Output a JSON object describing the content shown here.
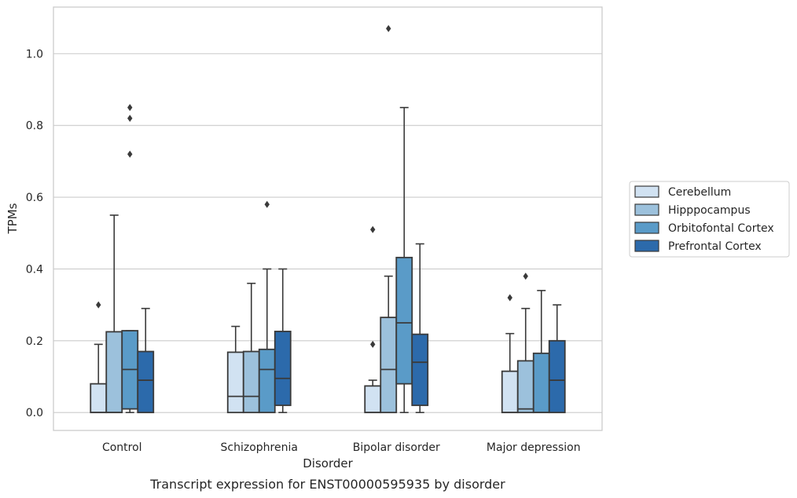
{
  "caption": "Transcript expression for ENST00000595935 by disorder",
  "chart_data": {
    "type": "boxplot",
    "title": "",
    "xlabel": "Disorder",
    "ylabel": "TPMs",
    "ylim": [
      -0.05,
      1.13
    ],
    "yticks": [
      "0.0",
      "0.2",
      "0.4",
      "0.6",
      "0.8",
      "1.0"
    ],
    "grid": "horizontal",
    "legend_position": "right",
    "categories": [
      "Control",
      "Schizophrenia",
      "Bipolar disorder",
      "Major depression"
    ],
    "series": [
      {
        "name": "Cerebellum",
        "color": "#d1e2f2",
        "boxes": [
          {
            "whisker_low": 0,
            "q1": 0,
            "median": 0,
            "q3": 0.08,
            "whisker_high": 0.19,
            "outliers": [
              0.3
            ]
          },
          {
            "whisker_low": 0,
            "q1": 0,
            "median": 0.045,
            "q3": 0.168,
            "whisker_high": 0.24,
            "outliers": []
          },
          {
            "whisker_low": 0,
            "q1": 0,
            "median": 0,
            "q3": 0.074,
            "whisker_high": 0.09,
            "outliers": [
              0.19,
              0.51
            ]
          },
          {
            "whisker_low": 0,
            "q1": 0,
            "median": 0,
            "q3": 0.115,
            "whisker_high": 0.22,
            "outliers": [
              0.32
            ]
          }
        ]
      },
      {
        "name": "Hipppocampus",
        "color": "#9cc1dc",
        "boxes": [
          {
            "whisker_low": 0,
            "q1": 0,
            "median": 0,
            "q3": 0.225,
            "whisker_high": 0.55,
            "outliers": []
          },
          {
            "whisker_low": 0,
            "q1": 0,
            "median": 0.045,
            "q3": 0.17,
            "whisker_high": 0.36,
            "outliers": []
          },
          {
            "whisker_low": 0,
            "q1": 0,
            "median": 0.12,
            "q3": 0.265,
            "whisker_high": 0.38,
            "outliers": [
              1.07
            ]
          },
          {
            "whisker_low": 0,
            "q1": 0,
            "median": 0.01,
            "q3": 0.144,
            "whisker_high": 0.29,
            "outliers": [
              0.38
            ]
          }
        ]
      },
      {
        "name": "Orbitofontal Cortex",
        "color": "#5a9bc8",
        "boxes": [
          {
            "whisker_low": 0,
            "q1": 0.01,
            "median": 0.12,
            "q3": 0.228,
            "whisker_high": 0.228,
            "outliers": [
              0.72,
              0.82,
              0.85
            ]
          },
          {
            "whisker_low": 0,
            "q1": 0,
            "median": 0.12,
            "q3": 0.176,
            "whisker_high": 0.4,
            "outliers": [
              0.58
            ]
          },
          {
            "whisker_low": 0,
            "q1": 0.08,
            "median": 0.25,
            "q3": 0.432,
            "whisker_high": 0.85,
            "outliers": []
          },
          {
            "whisker_low": 0,
            "q1": 0,
            "median": 0,
            "q3": 0.165,
            "whisker_high": 0.34,
            "outliers": []
          }
        ]
      },
      {
        "name": "Prefrontal Cortex",
        "color": "#2c6aab",
        "boxes": [
          {
            "whisker_low": 0,
            "q1": 0,
            "median": 0.09,
            "q3": 0.17,
            "whisker_high": 0.29,
            "outliers": []
          },
          {
            "whisker_low": 0,
            "q1": 0.02,
            "median": 0.095,
            "q3": 0.226,
            "whisker_high": 0.4,
            "outliers": []
          },
          {
            "whisker_low": 0,
            "q1": 0.02,
            "median": 0.14,
            "q3": 0.218,
            "whisker_high": 0.47,
            "outliers": []
          },
          {
            "whisker_low": 0,
            "q1": 0,
            "median": 0.09,
            "q3": 0.2,
            "whisker_high": 0.3,
            "outliers": []
          }
        ]
      }
    ]
  }
}
